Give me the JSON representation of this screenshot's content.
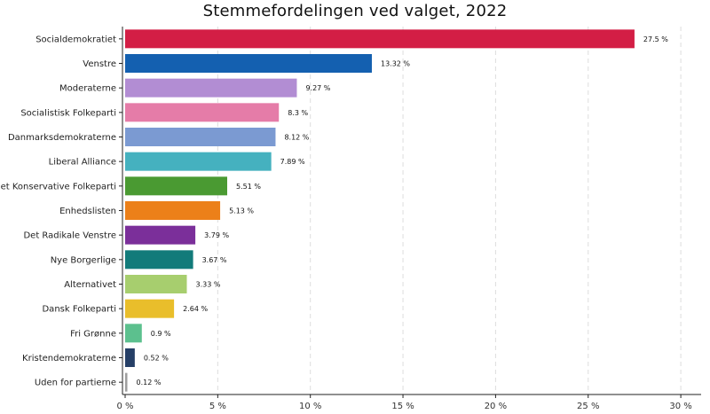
{
  "chart_data": {
    "type": "bar",
    "orientation": "horizontal",
    "title": "Stemmefordelingen ved valget, 2022",
    "xlabel": "",
    "ylabel": "",
    "xlim": [
      0,
      30
    ],
    "xticks": [
      0,
      5,
      10,
      15,
      20,
      25,
      30
    ],
    "xtick_labels": [
      "0 %",
      "5 %",
      "10 %",
      "15 %",
      "20 %",
      "25 %",
      "30 %"
    ],
    "grid": "vertical dashed",
    "categories": [
      "Socialdemokratiet",
      "Venstre",
      "Moderaterne",
      "Socialistisk Folkeparti",
      "Danmarksdemokraterne",
      "Liberal Alliance",
      "Det Konservative Folkeparti",
      "Enhedslisten",
      "Det Radikale Venstre",
      "Nye Borgerlige",
      "Alternativet",
      "Dansk Folkeparti",
      "Fri Grønne",
      "Kristendemokraterne",
      "Uden for partierne"
    ],
    "values": [
      27.5,
      13.32,
      9.27,
      8.3,
      8.12,
      7.89,
      5.51,
      5.13,
      3.79,
      3.67,
      3.33,
      2.64,
      0.9,
      0.52,
      0.12
    ],
    "value_labels": [
      "27.5 %",
      "13.32 %",
      "9.27 %",
      "8.3 %",
      "8.12 %",
      "7.89 %",
      "5.51 %",
      "5.13 %",
      "3.79 %",
      "3.67 %",
      "3.33 %",
      "2.64 %",
      "0.9 %",
      "0.52 %",
      "0.12 %"
    ],
    "colors": [
      "#D31E45",
      "#1460B0",
      "#B28DD3",
      "#E57CA8",
      "#7B9AD2",
      "#45B1BF",
      "#4A9A32",
      "#EC8019",
      "#7B2F9A",
      "#127B7A",
      "#A7CE6E",
      "#E9BE2B",
      "#5CC08E",
      "#253F66",
      "#9E9E9E"
    ]
  }
}
